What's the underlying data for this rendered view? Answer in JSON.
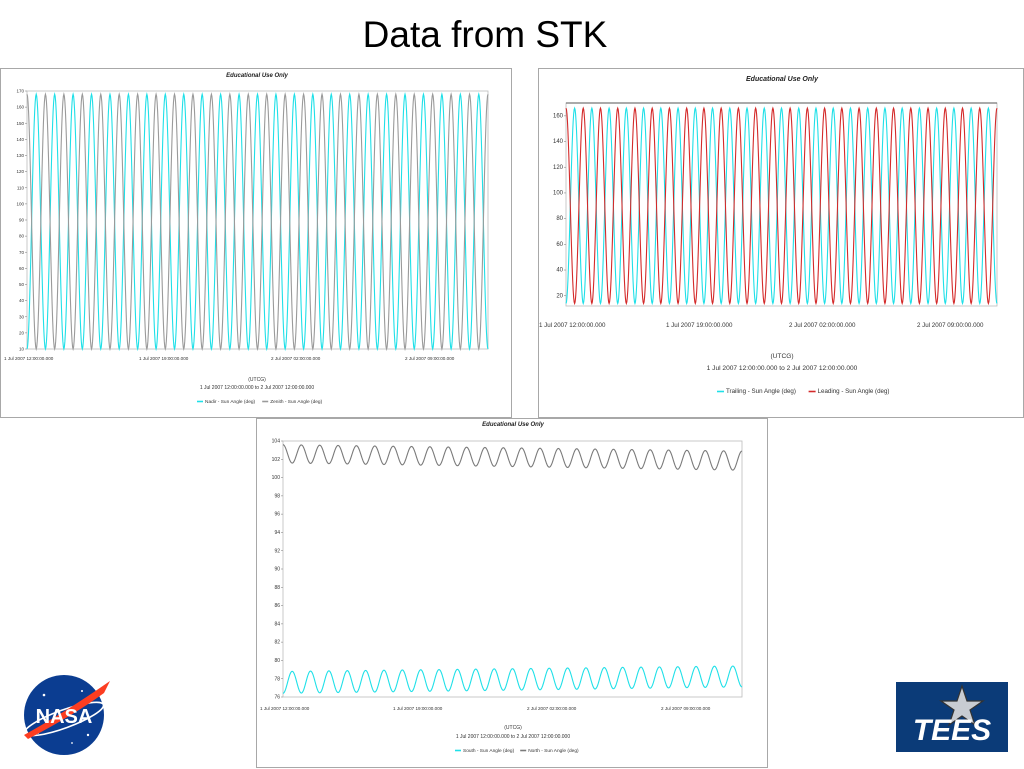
{
  "slide": {
    "title": "Data from STK"
  },
  "logos": {
    "nasa_text": "NASA",
    "tees_text": "TEES"
  },
  "chart_data": [
    {
      "type": "line",
      "title": "Educational Use Only",
      "xlabel": "(UTCG)",
      "time_range": "1 Jul 2007 12:00:00.000  to  2 Jul 2007 12:00:00.000",
      "x_tick_labels": [
        "1 Jul 2007 12:00:00.000",
        "1 Jul 2007 19:00:00.000",
        "2 Jul 2007 02:00:00.000",
        "2 Jul 2007 09:00:00.000"
      ],
      "y_ticks": [
        10,
        20,
        30,
        40,
        50,
        60,
        70,
        80,
        90,
        100,
        110,
        120,
        130,
        140,
        150,
        160,
        170
      ],
      "ylim": [
        10,
        170
      ],
      "grid": false,
      "legend_position": "bottom",
      "series": [
        {
          "name": "Nadir - Sun Angle (deg)",
          "color": "#1fe0e8",
          "cycles": 25,
          "min": 10,
          "max": 168,
          "phase": 0.5
        },
        {
          "name": "Zenith - Sun Angle (deg)",
          "color": "#9a9a9a",
          "cycles": 25,
          "min": 10,
          "max": 168,
          "phase": 0.0
        }
      ]
    },
    {
      "type": "line",
      "title": "Educational Use Only",
      "xlabel": "(UTCG)",
      "time_range": "1 Jul 2007 12:00:00.000  to  2 Jul 2007 12:00:00.000",
      "x_tick_labels": [
        "1 Jul 2007 12:00:00.000",
        "1 Jul 2007 19:00:00.000",
        "2 Jul 2007 02:00:00.000",
        "2 Jul 2007 09:00:00.000"
      ],
      "y_ticks": [
        20,
        40,
        60,
        80,
        100,
        120,
        140,
        160
      ],
      "ylim": [
        12,
        170
      ],
      "grid": false,
      "legend_position": "bottom",
      "series": [
        {
          "name": "Trailing - Sun Angle (deg)",
          "color": "#1fe0e8",
          "cycles": 25,
          "min": 14,
          "max": 166,
          "phase": 0.5
        },
        {
          "name": "Leading - Sun Angle (deg)",
          "color": "#d42a2a",
          "cycles": 25,
          "min": 14,
          "max": 166,
          "phase": 0.0
        }
      ]
    },
    {
      "type": "line",
      "title": "Educational Use Only",
      "xlabel": "(UTCG)",
      "time_range": "1 Jul 2007 12:00:00.000  to  2 Jul 2007 12:00:00.000",
      "x_tick_labels": [
        "1 Jul 2007 12:00:00.000",
        "1 Jul 2007 19:00:00.000",
        "2 Jul 2007 02:00:00.000",
        "2 Jul 2007 09:00:00.000"
      ],
      "y_ticks": [
        76,
        78,
        80,
        82,
        84,
        86,
        88,
        90,
        92,
        94,
        96,
        98,
        100,
        102,
        104
      ],
      "ylim": [
        76,
        104
      ],
      "grid": false,
      "legend_position": "bottom",
      "series": [
        {
          "name": "South - Sun Angle (deg)",
          "color": "#1fe0e8",
          "cycles": 25,
          "min_start": 76.4,
          "max_start": 78.8,
          "min_end": 77.1,
          "max_end": 79.4,
          "phase": 0.5
        },
        {
          "name": "North - Sun Angle (deg)",
          "color": "#7a7a7a",
          "cycles": 25,
          "min_start": 101.6,
          "max_start": 103.6,
          "min_end": 100.8,
          "max_end": 102.9,
          "phase": 0.0
        }
      ]
    }
  ]
}
